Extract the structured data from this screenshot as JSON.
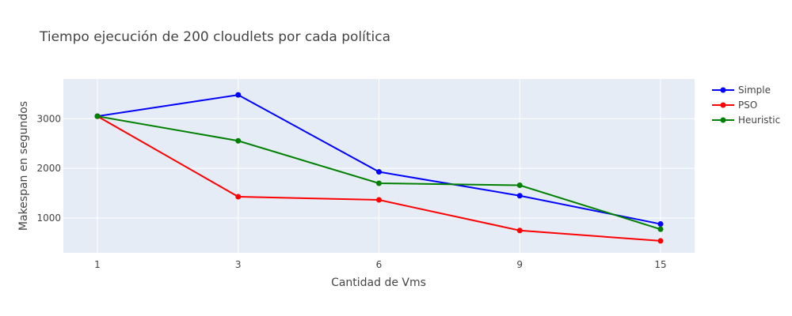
{
  "chart_data": {
    "type": "line",
    "title": "Tiempo ejecución de 200 cloudlets por cada política",
    "xlabel": "Cantidad de Vms",
    "ylabel": "Makespan en segundos",
    "x_tick_labels": [
      "1",
      "3",
      "6",
      "9",
      "15"
    ],
    "y_ticks": [
      1000,
      2000,
      3000
    ],
    "y_tick_labels": [
      "1000",
      "2000",
      "3000"
    ],
    "ylim": [
      300,
      3800
    ],
    "grid": true,
    "legend_position": "top-right",
    "series": [
      {
        "name": "Simple",
        "color": "#0000ff",
        "values": [
          3050,
          3480,
          1930,
          1450,
          880
        ]
      },
      {
        "name": "PSO",
        "color": "#ff0000",
        "values": [
          3050,
          1430,
          1365,
          750,
          540
        ]
      },
      {
        "name": "Heuristic",
        "color": "#008000",
        "values": [
          3050,
          2555,
          1700,
          1660,
          775
        ]
      }
    ]
  },
  "plot_background": "#e5ecf6"
}
